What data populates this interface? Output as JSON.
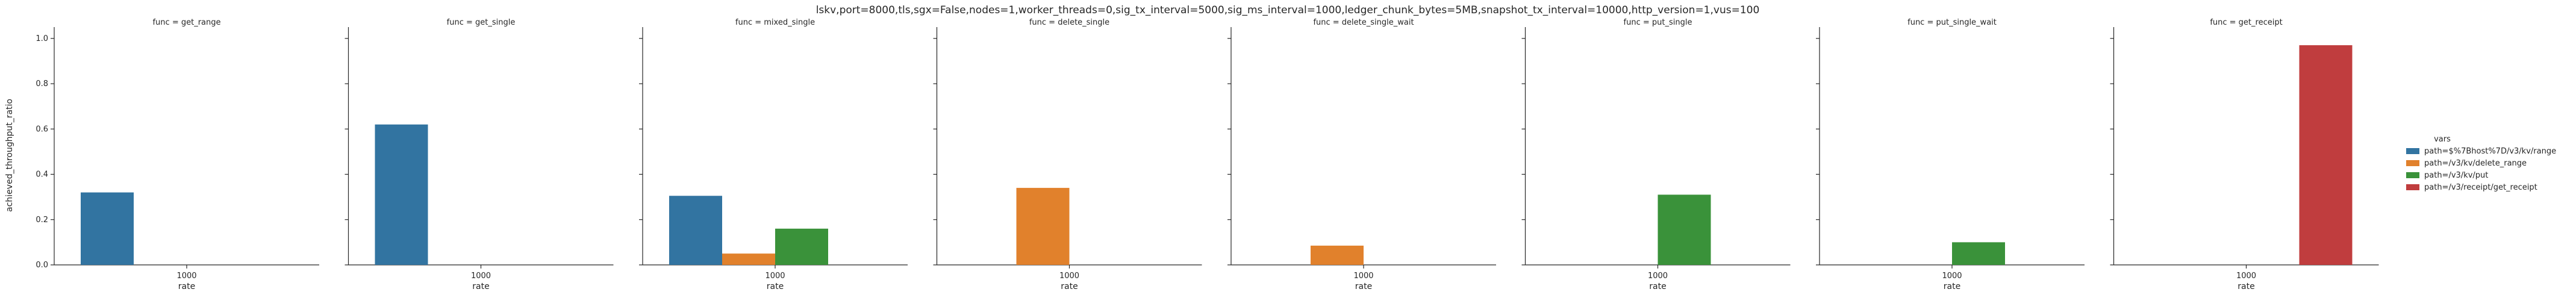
{
  "chart_data": {
    "type": "bar",
    "title": "lskv,port=8000,tls,sgx=False,nodes=1,worker_threads=0,sig_tx_interval=5000,sig_ms_interval=1000,ledger_chunk_bytes=5MB,snapshot_tx_interval=10000,http_version=1,vus=100",
    "ylabel": "achieved_throughput_ratio",
    "xlabel": "rate",
    "ylim": [
      0,
      1.05
    ],
    "yticks": [
      0.0,
      0.2,
      0.4,
      0.6,
      0.8,
      1.0
    ],
    "ytick_labels": [
      "0.0",
      "0.2",
      "0.4",
      "0.6",
      "0.8",
      "1.0"
    ],
    "categories": [
      "1000"
    ],
    "grid": false,
    "legend": {
      "title": "vars",
      "placement": "right",
      "entries": [
        {
          "label": "path=$%7Bhost%7D/v3/kv/range",
          "color": "#3274a1"
        },
        {
          "label": "path=/v3/kv/delete_range",
          "color": "#e1812c"
        },
        {
          "label": "path=/v3/kv/put",
          "color": "#3a923a"
        },
        {
          "label": "path=/v3/receipt/get_receipt",
          "color": "#c03d3e"
        }
      ]
    },
    "panels": [
      {
        "title": "func = get_range",
        "values": [
          0.32,
          0,
          0,
          0
        ]
      },
      {
        "title": "func = get_single",
        "values": [
          0.62,
          0,
          0,
          0
        ]
      },
      {
        "title": "func = mixed_single",
        "values": [
          0.305,
          0.05,
          0.16,
          0
        ]
      },
      {
        "title": "func = delete_single",
        "values": [
          0,
          0.34,
          0,
          0
        ]
      },
      {
        "title": "func = delete_single_wait",
        "values": [
          0,
          0.085,
          0,
          0
        ]
      },
      {
        "title": "func = put_single",
        "values": [
          0,
          0,
          0.31,
          0
        ]
      },
      {
        "title": "func = put_single_wait",
        "values": [
          0,
          0,
          0.1,
          0
        ]
      },
      {
        "title": "func = get_receipt",
        "values": [
          0,
          0,
          0,
          0.97
        ]
      }
    ]
  }
}
